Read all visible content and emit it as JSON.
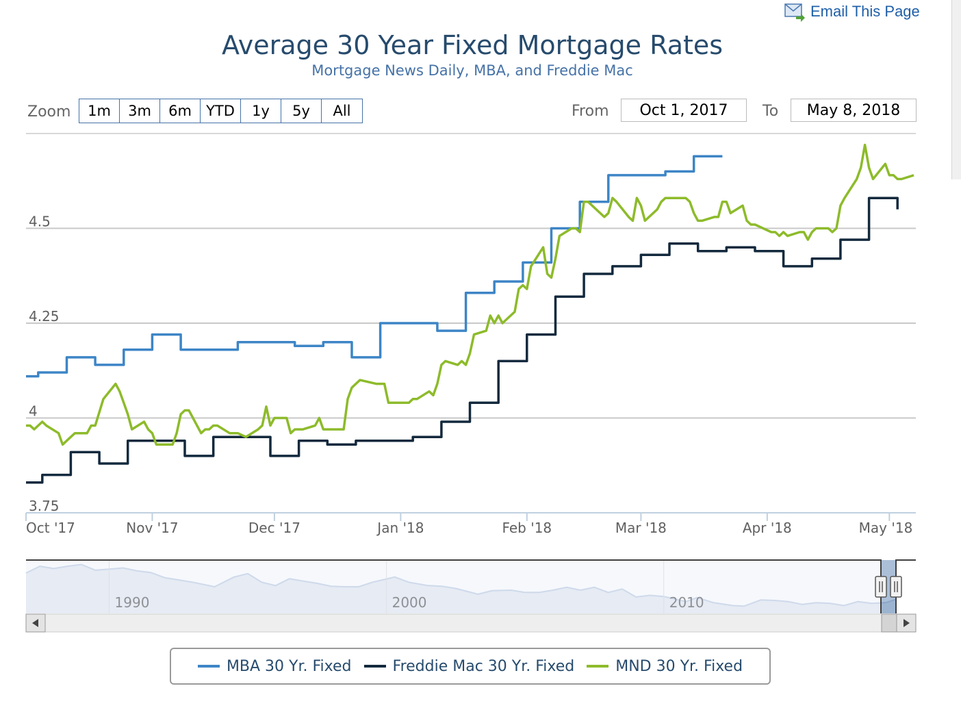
{
  "email_link": {
    "label": "Email This Page",
    "icon": "envelope-icon"
  },
  "title": "Average 30 Year Fixed Mortgage Rates",
  "subtitle": "Mortgage News Daily, MBA, and Freddie Mac",
  "range_selector": {
    "zoom_label": "Zoom",
    "buttons": [
      "1m",
      "3m",
      "6m",
      "YTD",
      "1y",
      "5y",
      "All"
    ],
    "from_label": "From",
    "from_value": "Oct 1, 2017",
    "to_label": "To",
    "to_value": "May 8, 2018"
  },
  "legend": [
    {
      "label": "MBA 30 Yr. Fixed",
      "color": "#3d85c6"
    },
    {
      "label": "Freddie Mac 30 Yr. Fixed",
      "color": "#13293d"
    },
    {
      "label": "MND 30 Yr. Fixed",
      "color": "#8dbb2a"
    }
  ],
  "navigator": {
    "tick_labels": [
      "1990",
      "2000",
      "2010"
    ]
  },
  "chart_data": {
    "type": "line",
    "title": "Average 30 Year Fixed Mortgage Rates",
    "subtitle": "Mortgage News Daily, MBA, and Freddie Mac",
    "x_type": "datetime",
    "x_range": [
      "2017-10-01",
      "2018-05-08"
    ],
    "x_tick_labels": [
      "Oct '17",
      "Nov '17",
      "Dec '17",
      "Jan '18",
      "Feb '18",
      "Mar '18",
      "Apr '18",
      "May '18"
    ],
    "x_tick_dates": [
      "2017-10-01",
      "2017-11-01",
      "2017-12-01",
      "2018-01-01",
      "2018-02-01",
      "2018-03-01",
      "2018-04-01",
      "2018-05-01"
    ],
    "ylim": [
      3.75,
      4.75
    ],
    "y_ticks": [
      3.75,
      4,
      4.25,
      4.5
    ],
    "y_tick_labels": [
      "3.75",
      "4",
      "4.25",
      "4.5"
    ],
    "grid": true,
    "legend_position": "bottom-center",
    "series": [
      {
        "name": "MBA 30 Yr. Fixed",
        "color": "#3d85c6",
        "step": true,
        "points": [
          [
            "2017-10-01",
            4.11
          ],
          [
            "2017-10-04",
            4.12
          ],
          [
            "2017-10-11",
            4.16
          ],
          [
            "2017-10-18",
            4.14
          ],
          [
            "2017-10-25",
            4.18
          ],
          [
            "2017-11-01",
            4.22
          ],
          [
            "2017-11-08",
            4.18
          ],
          [
            "2017-11-15",
            4.18
          ],
          [
            "2017-11-22",
            4.2
          ],
          [
            "2017-11-29",
            4.2
          ],
          [
            "2017-12-06",
            4.19
          ],
          [
            "2017-12-13",
            4.2
          ],
          [
            "2017-12-20",
            4.16
          ],
          [
            "2017-12-27",
            4.25
          ],
          [
            "2018-01-03",
            4.25
          ],
          [
            "2018-01-10",
            4.23
          ],
          [
            "2018-01-17",
            4.33
          ],
          [
            "2018-01-24",
            4.36
          ],
          [
            "2018-01-31",
            4.41
          ],
          [
            "2018-02-07",
            4.5
          ],
          [
            "2018-02-14",
            4.57
          ],
          [
            "2018-02-21",
            4.64
          ],
          [
            "2018-02-28",
            4.64
          ],
          [
            "2018-03-07",
            4.65
          ],
          [
            "2018-03-14",
            4.69
          ],
          [
            "2018-03-21",
            4.69
          ]
        ]
      },
      {
        "name": "Freddie Mac 30 Yr. Fixed",
        "color": "#13293d",
        "step": true,
        "points": [
          [
            "2017-10-01",
            3.83
          ],
          [
            "2017-10-05",
            3.85
          ],
          [
            "2017-10-12",
            3.91
          ],
          [
            "2017-10-19",
            3.88
          ],
          [
            "2017-10-26",
            3.94
          ],
          [
            "2017-11-02",
            3.94
          ],
          [
            "2017-11-09",
            3.9
          ],
          [
            "2017-11-16",
            3.95
          ],
          [
            "2017-11-23",
            3.95
          ],
          [
            "2017-11-30",
            3.9
          ],
          [
            "2017-12-07",
            3.94
          ],
          [
            "2017-12-14",
            3.93
          ],
          [
            "2017-12-21",
            3.94
          ],
          [
            "2017-12-28",
            3.94
          ],
          [
            "2018-01-04",
            3.95
          ],
          [
            "2018-01-11",
            3.99
          ],
          [
            "2018-01-18",
            4.04
          ],
          [
            "2018-01-25",
            4.15
          ],
          [
            "2018-02-01",
            4.22
          ],
          [
            "2018-02-08",
            4.32
          ],
          [
            "2018-02-15",
            4.38
          ],
          [
            "2018-02-22",
            4.4
          ],
          [
            "2018-03-01",
            4.43
          ],
          [
            "2018-03-08",
            4.46
          ],
          [
            "2018-03-15",
            4.44
          ],
          [
            "2018-03-22",
            4.45
          ],
          [
            "2018-03-29",
            4.44
          ],
          [
            "2018-04-05",
            4.4
          ],
          [
            "2018-04-12",
            4.42
          ],
          [
            "2018-04-19",
            4.47
          ],
          [
            "2018-04-26",
            4.58
          ],
          [
            "2018-05-03",
            4.55
          ]
        ]
      },
      {
        "name": "MND 30 Yr. Fixed",
        "color": "#8dbb2a",
        "step": false,
        "points": [
          [
            "2017-10-01",
            3.98
          ],
          [
            "2017-10-02",
            3.98
          ],
          [
            "2017-10-03",
            3.97
          ],
          [
            "2017-10-05",
            3.99
          ],
          [
            "2017-10-06",
            3.98
          ],
          [
            "2017-10-09",
            3.96
          ],
          [
            "2017-10-10",
            3.93
          ],
          [
            "2017-10-12",
            3.95
          ],
          [
            "2017-10-13",
            3.96
          ],
          [
            "2017-10-16",
            3.96
          ],
          [
            "2017-10-17",
            3.98
          ],
          [
            "2017-10-18",
            3.98
          ],
          [
            "2017-10-20",
            4.05
          ],
          [
            "2017-10-23",
            4.09
          ],
          [
            "2017-10-24",
            4.07
          ],
          [
            "2017-10-25",
            4.04
          ],
          [
            "2017-10-26",
            4.01
          ],
          [
            "2017-10-27",
            3.97
          ],
          [
            "2017-10-30",
            3.99
          ],
          [
            "2017-10-31",
            3.97
          ],
          [
            "2017-11-01",
            3.96
          ],
          [
            "2017-11-02",
            3.93
          ],
          [
            "2017-11-03",
            3.93
          ],
          [
            "2017-11-06",
            3.93
          ],
          [
            "2017-11-07",
            3.96
          ],
          [
            "2017-11-08",
            4.01
          ],
          [
            "2017-11-09",
            4.02
          ],
          [
            "2017-11-10",
            4.02
          ],
          [
            "2017-11-13",
            3.96
          ],
          [
            "2017-11-14",
            3.97
          ],
          [
            "2017-11-15",
            3.97
          ],
          [
            "2017-11-16",
            3.98
          ],
          [
            "2017-11-17",
            3.98
          ],
          [
            "2017-11-20",
            3.96
          ],
          [
            "2017-11-21",
            3.96
          ],
          [
            "2017-11-22",
            3.96
          ],
          [
            "2017-11-24",
            3.95
          ],
          [
            "2017-11-27",
            3.97
          ],
          [
            "2017-11-28",
            3.98
          ],
          [
            "2017-11-29",
            4.03
          ],
          [
            "2017-11-30",
            3.98
          ],
          [
            "2017-12-01",
            4.0
          ],
          [
            "2017-12-04",
            4.0
          ],
          [
            "2017-12-05",
            3.96
          ],
          [
            "2017-12-06",
            3.97
          ],
          [
            "2017-12-07",
            3.97
          ],
          [
            "2017-12-08",
            3.97
          ],
          [
            "2017-12-11",
            3.98
          ],
          [
            "2017-12-12",
            4.0
          ],
          [
            "2017-12-13",
            3.97
          ],
          [
            "2017-12-14",
            3.97
          ],
          [
            "2017-12-15",
            3.97
          ],
          [
            "2017-12-18",
            3.97
          ],
          [
            "2017-12-19",
            4.05
          ],
          [
            "2017-12-20",
            4.08
          ],
          [
            "2017-12-21",
            4.09
          ],
          [
            "2017-12-22",
            4.1
          ],
          [
            "2017-12-26",
            4.09
          ],
          [
            "2017-12-27",
            4.09
          ],
          [
            "2017-12-28",
            4.09
          ],
          [
            "2017-12-29",
            4.04
          ],
          [
            "2018-01-02",
            4.04
          ],
          [
            "2018-01-03",
            4.04
          ],
          [
            "2018-01-04",
            4.05
          ],
          [
            "2018-01-05",
            4.05
          ],
          [
            "2018-01-08",
            4.07
          ],
          [
            "2018-01-09",
            4.06
          ],
          [
            "2018-01-10",
            4.09
          ],
          [
            "2018-01-11",
            4.14
          ],
          [
            "2018-01-12",
            4.15
          ],
          [
            "2018-01-15",
            4.14
          ],
          [
            "2018-01-16",
            4.15
          ],
          [
            "2018-01-17",
            4.14
          ],
          [
            "2018-01-18",
            4.17
          ],
          [
            "2018-01-19",
            4.22
          ],
          [
            "2018-01-22",
            4.23
          ],
          [
            "2018-01-23",
            4.27
          ],
          [
            "2018-01-24",
            4.25
          ],
          [
            "2018-01-25",
            4.27
          ],
          [
            "2018-01-26",
            4.25
          ],
          [
            "2018-01-29",
            4.28
          ],
          [
            "2018-01-30",
            4.34
          ],
          [
            "2018-01-31",
            4.35
          ],
          [
            "2018-02-01",
            4.34
          ],
          [
            "2018-02-02",
            4.4
          ],
          [
            "2018-02-05",
            4.45
          ],
          [
            "2018-02-06",
            4.38
          ],
          [
            "2018-02-07",
            4.37
          ],
          [
            "2018-02-08",
            4.42
          ],
          [
            "2018-02-09",
            4.48
          ],
          [
            "2018-02-12",
            4.5
          ],
          [
            "2018-02-13",
            4.5
          ],
          [
            "2018-02-14",
            4.49
          ],
          [
            "2018-02-15",
            4.57
          ],
          [
            "2018-02-16",
            4.57
          ],
          [
            "2018-02-20",
            4.53
          ],
          [
            "2018-02-21",
            4.54
          ],
          [
            "2018-02-22",
            4.58
          ],
          [
            "2018-02-23",
            4.57
          ],
          [
            "2018-02-26",
            4.53
          ],
          [
            "2018-02-27",
            4.52
          ],
          [
            "2018-02-28",
            4.58
          ],
          [
            "2018-03-01",
            4.56
          ],
          [
            "2018-03-02",
            4.52
          ],
          [
            "2018-03-05",
            4.55
          ],
          [
            "2018-03-06",
            4.57
          ],
          [
            "2018-03-07",
            4.58
          ],
          [
            "2018-03-08",
            4.58
          ],
          [
            "2018-03-09",
            4.58
          ],
          [
            "2018-03-12",
            4.58
          ],
          [
            "2018-03-13",
            4.57
          ],
          [
            "2018-03-14",
            4.54
          ],
          [
            "2018-03-15",
            4.52
          ],
          [
            "2018-03-16",
            4.52
          ],
          [
            "2018-03-19",
            4.53
          ],
          [
            "2018-03-20",
            4.53
          ],
          [
            "2018-03-21",
            4.57
          ],
          [
            "2018-03-22",
            4.57
          ],
          [
            "2018-03-23",
            4.54
          ],
          [
            "2018-03-26",
            4.56
          ],
          [
            "2018-03-27",
            4.52
          ],
          [
            "2018-03-28",
            4.51
          ],
          [
            "2018-03-29",
            4.51
          ],
          [
            "2018-04-02",
            4.49
          ],
          [
            "2018-04-03",
            4.49
          ],
          [
            "2018-04-04",
            4.48
          ],
          [
            "2018-04-05",
            4.49
          ],
          [
            "2018-04-06",
            4.48
          ],
          [
            "2018-04-09",
            4.49
          ],
          [
            "2018-04-10",
            4.49
          ],
          [
            "2018-04-11",
            4.47
          ],
          [
            "2018-04-12",
            4.49
          ],
          [
            "2018-04-13",
            4.5
          ],
          [
            "2018-04-16",
            4.5
          ],
          [
            "2018-04-17",
            4.49
          ],
          [
            "2018-04-18",
            4.5
          ],
          [
            "2018-04-19",
            4.56
          ],
          [
            "2018-04-20",
            4.58
          ],
          [
            "2018-04-23",
            4.63
          ],
          [
            "2018-04-24",
            4.66
          ],
          [
            "2018-04-25",
            4.72
          ],
          [
            "2018-04-26",
            4.66
          ],
          [
            "2018-04-27",
            4.63
          ],
          [
            "2018-04-30",
            4.67
          ],
          [
            "2018-05-01",
            4.64
          ],
          [
            "2018-05-02",
            4.64
          ],
          [
            "2018-05-03",
            4.63
          ],
          [
            "2018-05-04",
            4.63
          ],
          [
            "2018-05-07",
            4.64
          ]
        ]
      }
    ],
    "navigator": {
      "x_range_years": [
        1987,
        2018.4
      ],
      "x_tick_labels": [
        "1990",
        "2000",
        "2010"
      ],
      "x_tick_years": [
        1990,
        2000,
        2010
      ],
      "selected_range": [
        "2017-10-01",
        "2018-05-08"
      ],
      "series_name": "Freddie Mac 30 Yr. Fixed",
      "points": [
        [
          1987.0,
          9.2
        ],
        [
          1987.5,
          10.4
        ],
        [
          1988.0,
          10.0
        ],
        [
          1988.5,
          10.4
        ],
        [
          1989.0,
          10.7
        ],
        [
          1989.5,
          9.7
        ],
        [
          1990.0,
          9.9
        ],
        [
          1990.5,
          10.1
        ],
        [
          1991.0,
          9.6
        ],
        [
          1991.5,
          9.3
        ],
        [
          1992.0,
          8.4
        ],
        [
          1992.5,
          8.0
        ],
        [
          1993.0,
          7.6
        ],
        [
          1993.8,
          6.8
        ],
        [
          1994.5,
          8.5
        ],
        [
          1995.0,
          9.1
        ],
        [
          1995.5,
          7.6
        ],
        [
          1996.0,
          7.0
        ],
        [
          1996.5,
          8.2
        ],
        [
          1997.0,
          7.8
        ],
        [
          1997.5,
          7.4
        ],
        [
          1998.0,
          6.9
        ],
        [
          1998.5,
          6.8
        ],
        [
          1999.0,
          6.8
        ],
        [
          1999.5,
          7.6
        ],
        [
          2000.3,
          8.5
        ],
        [
          2000.8,
          7.6
        ],
        [
          2001.5,
          7.0
        ],
        [
          2002.0,
          6.9
        ],
        [
          2002.5,
          6.5
        ],
        [
          2003.3,
          5.5
        ],
        [
          2003.8,
          6.1
        ],
        [
          2004.5,
          6.2
        ],
        [
          2005.0,
          5.8
        ],
        [
          2005.5,
          5.8
        ],
        [
          2006.0,
          6.2
        ],
        [
          2006.5,
          6.7
        ],
        [
          2007.0,
          6.2
        ],
        [
          2007.5,
          6.7
        ],
        [
          2008.0,
          5.8
        ],
        [
          2008.5,
          6.4
        ],
        [
          2009.0,
          5.0
        ],
        [
          2009.5,
          5.3
        ],
        [
          2010.0,
          5.1
        ],
        [
          2010.8,
          4.2
        ],
        [
          2011.2,
          4.9
        ],
        [
          2011.8,
          4.0
        ],
        [
          2012.5,
          3.5
        ],
        [
          2012.9,
          3.4
        ],
        [
          2013.5,
          4.5
        ],
        [
          2014.0,
          4.4
        ],
        [
          2014.5,
          4.2
        ],
        [
          2015.0,
          3.7
        ],
        [
          2015.5,
          4.0
        ],
        [
          2016.0,
          3.9
        ],
        [
          2016.5,
          3.5
        ],
        [
          2017.0,
          4.2
        ],
        [
          2017.5,
          3.9
        ],
        [
          2018.0,
          4.0
        ],
        [
          2018.35,
          4.55
        ]
      ]
    }
  }
}
